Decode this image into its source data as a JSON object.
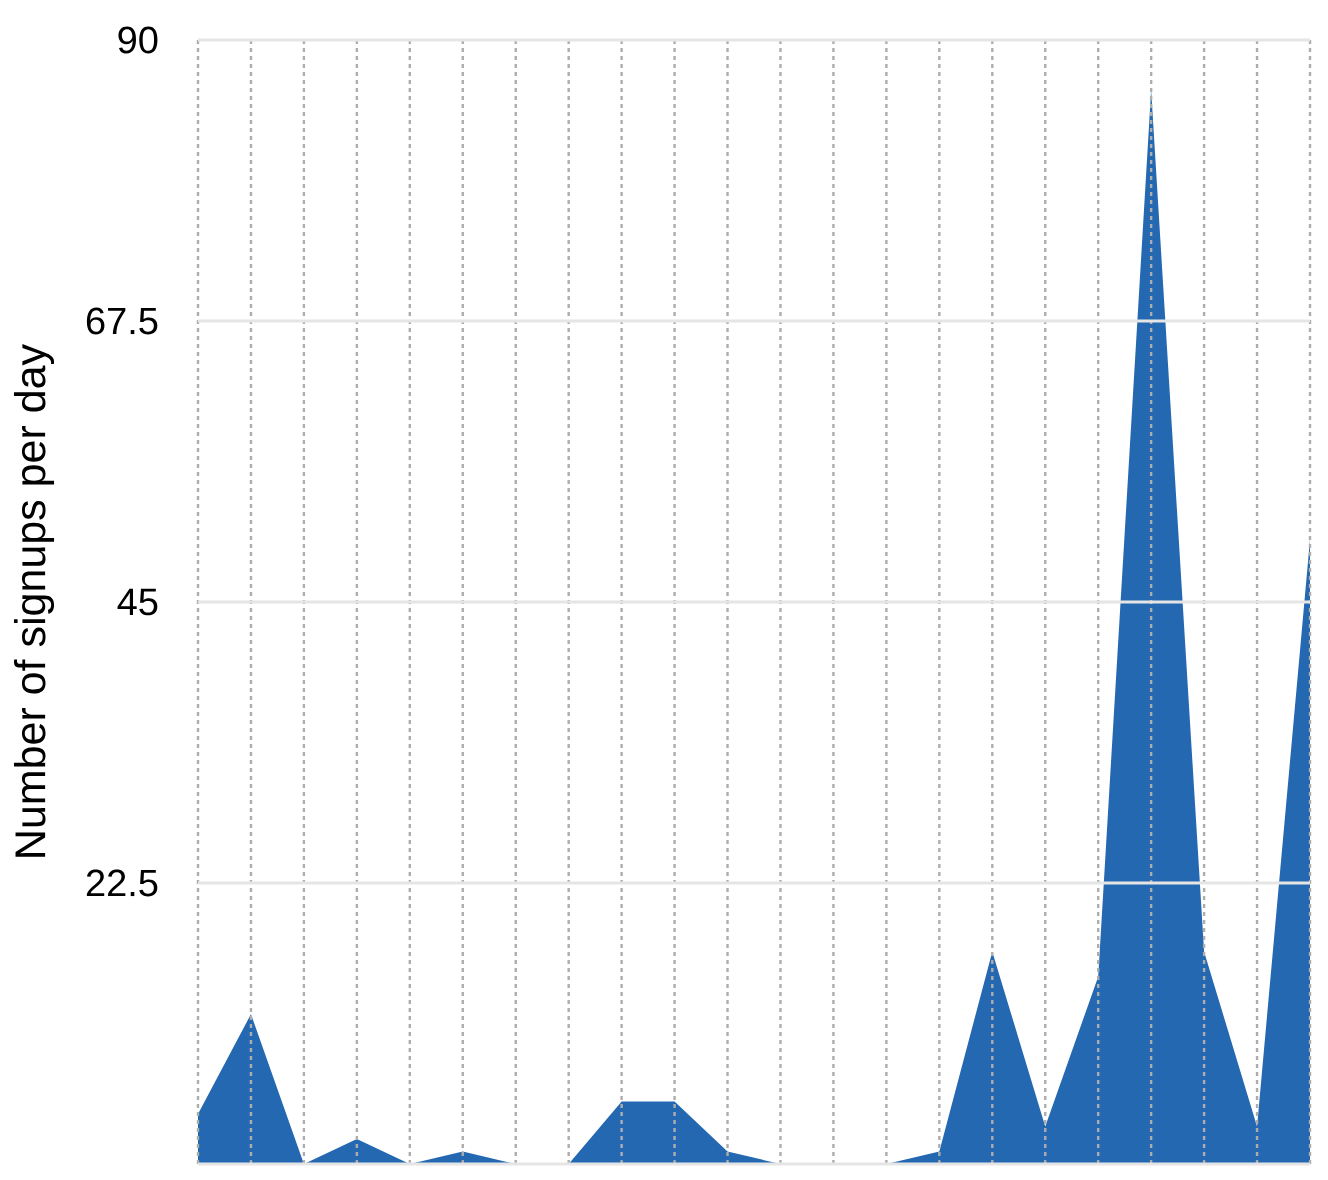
{
  "chart_data": {
    "type": "area",
    "ylabel": "Number of signups per day",
    "categories": [
      null,
      null,
      null,
      null,
      null,
      null,
      null,
      null,
      null,
      null,
      null,
      null,
      null,
      null,
      null,
      null,
      null,
      null,
      null,
      null,
      null,
      null
    ],
    "values": [
      4,
      12,
      0,
      2,
      0,
      1,
      0,
      0,
      5,
      5,
      1,
      0,
      0,
      0,
      1,
      17,
      3,
      15,
      86,
      17,
      3,
      50
    ],
    "color": "#2468b2",
    "ylim": [
      0,
      90
    ],
    "yticks": [
      {
        "value": 0,
        "label": null
      },
      22.5,
      45,
      67.5,
      90
    ],
    "grid": true,
    "tick_labels": "y"
  }
}
